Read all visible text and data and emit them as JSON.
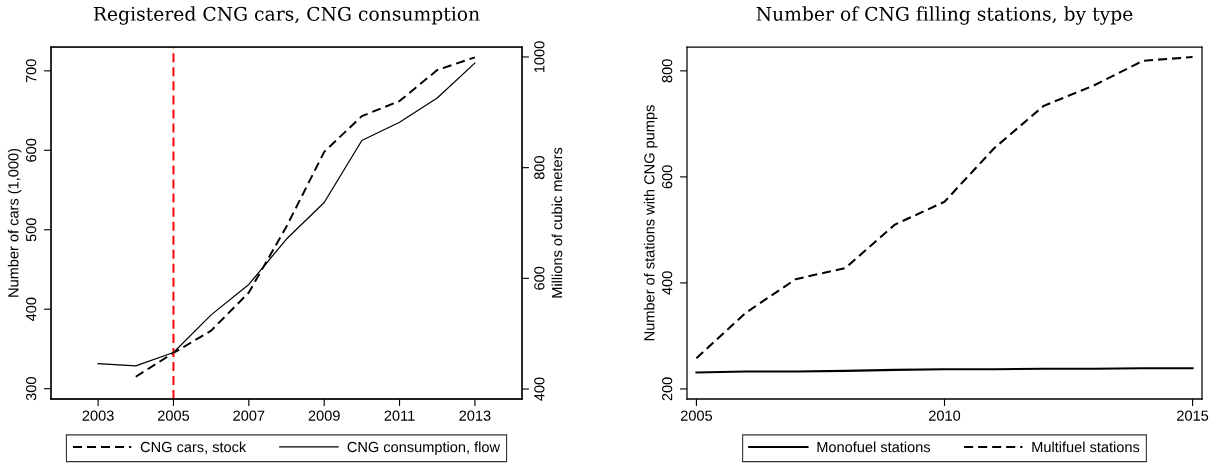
{
  "chart_data": [
    {
      "type": "line",
      "title": "Registered CNG cars, CNG consumption",
      "ylabel": "Number of cars (1,000)",
      "y2label": "Millions of cubic meters",
      "xlim": [
        2001.75,
        2014.25
      ],
      "xticks": [
        2003,
        2005,
        2007,
        2009,
        2011,
        2013
      ],
      "ylim": [
        287,
        730
      ],
      "yticks": [
        300,
        400,
        500,
        600,
        700
      ],
      "y2lim": [
        382,
        1018
      ],
      "y2ticks": [
        400,
        600,
        800,
        1000
      ],
      "series": [
        {
          "name": "CNG cars, stock",
          "color": "#000000",
          "line_style": "dashed",
          "x": [
            2004,
            2005,
            2006,
            2007,
            2008,
            2009,
            2010,
            2011,
            2012,
            2013
          ],
          "values": [
            315,
            345,
            373,
            421,
            504,
            598,
            643,
            662,
            701,
            717
          ]
        },
        {
          "name": "CNG consumption, flow",
          "color": "#000000",
          "line_style": "solid",
          "axis": "y2",
          "x": [
            2003,
            2004,
            2005,
            2006,
            2007,
            2008,
            2009,
            2010,
            2011,
            2012,
            2013
          ],
          "values": [
            446,
            442,
            466,
            534,
            589,
            671,
            737,
            849,
            882,
            926,
            989
          ]
        }
      ],
      "ref_lines": [
        {
          "axis": "x",
          "value": 2005,
          "color": "#ff0000",
          "line_style": "dashed"
        }
      ],
      "legend": "bottom"
    },
    {
      "type": "line",
      "title": "Number of CNG filling stations, by type",
      "ylabel": "Number of stations with CNG pumps",
      "x": [
        2005,
        2006,
        2007,
        2008,
        2009,
        2010,
        2011,
        2012,
        2013,
        2014,
        2015
      ],
      "xlim": [
        2004.81,
        2015.19
      ],
      "xticks": [
        2005,
        2010,
        2015
      ],
      "ylim": [
        181,
        845
      ],
      "yticks": [
        200,
        400,
        600,
        800
      ],
      "series": [
        {
          "name": "Monofuel stations",
          "color": "#000000",
          "line_style": "solid",
          "values": [
            231,
            233,
            233,
            234,
            236,
            237,
            237,
            238,
            238,
            239,
            239
          ]
        },
        {
          "name": "Multifuel stations",
          "color": "#000000",
          "line_style": "dashed",
          "values": [
            258,
            344,
            407,
            428,
            510,
            553,
            654,
            734,
            772,
            819,
            826
          ]
        }
      ],
      "legend": "bottom"
    }
  ]
}
